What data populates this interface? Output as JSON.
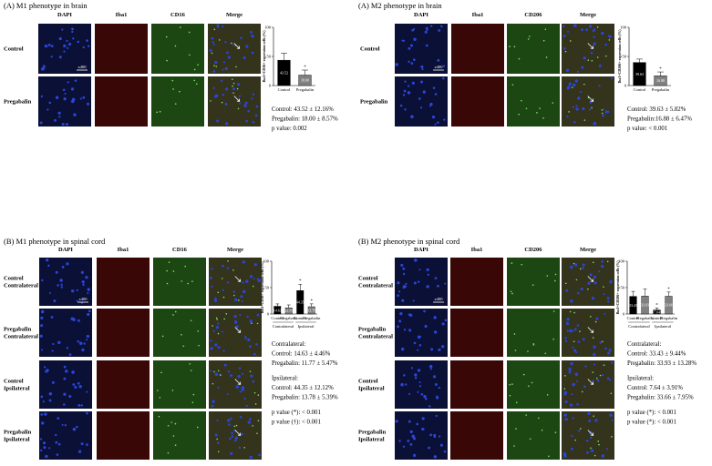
{
  "panels": [
    {
      "title": "(A) M1 phenotype in brain",
      "columns": [
        "DAPI",
        "Iba1",
        "CD16",
        "Merge"
      ],
      "rows": [
        [
          "Control"
        ],
        [
          "Pregabalin"
        ]
      ],
      "scale_label": "x400",
      "chart": {
        "type": "bar",
        "y_label": "Iba1+CD16+ expression cells (%)",
        "ylim": [
          0,
          100
        ],
        "yticks": [
          0,
          50,
          100
        ],
        "categories": [
          "Control",
          "Pregabalin"
        ],
        "values": [
          43.52,
          18.0
        ],
        "value_labels": [
          "43.52",
          "18.00"
        ],
        "errors": [
          12.16,
          8.57
        ],
        "markers": [
          null,
          "*"
        ],
        "bar_colors": [
          "#000000",
          "#808080"
        ]
      },
      "stats": [
        [
          "Control: 43.52 ± 12.16%",
          "Pregabalin: 18.00 ± 8.57%",
          "p value: 0.002"
        ]
      ]
    },
    {
      "title": "(A) M2 phenotype in brain",
      "columns": [
        "DAPI",
        "Iba1",
        "CD206",
        "Merge"
      ],
      "rows": [
        [
          "Control"
        ],
        [
          "Pregabalin"
        ]
      ],
      "scale_label": "x400",
      "chart": {
        "type": "bar",
        "y_label": "Iba1+CD206+ expression cells (%)",
        "ylim": [
          0,
          100
        ],
        "yticks": [
          0,
          50,
          100
        ],
        "categories": [
          "Control",
          "Pregabalin"
        ],
        "values": [
          39.63,
          16.88
        ],
        "value_labels": [
          "39.63",
          "16.88"
        ],
        "errors": [
          5.82,
          6.47
        ],
        "markers": [
          null,
          "*"
        ],
        "bar_colors": [
          "#000000",
          "#808080"
        ]
      },
      "stats": [
        [
          "Control: 39.63 ± 5.82%",
          "Pregabalin:16.88 ± 6.47%",
          "p value: < 0.001"
        ]
      ]
    },
    {
      "title": "(B) M1 phenotype in spinal cord",
      "columns": [
        "DAPI",
        "Iba1",
        "CD16",
        "Merge"
      ],
      "rows": [
        [
          "Control",
          "Contralateral"
        ],
        [
          "Pregabalin",
          "Contralateral"
        ],
        [
          "Control",
          "Ipsilateral"
        ],
        [
          "Pregabalin",
          "Ipsilateral"
        ]
      ],
      "scale_label": "x400",
      "chart": {
        "type": "bar",
        "y_label": "Iba1+CD16+ expression cells (%)",
        "ylim": [
          0,
          100
        ],
        "yticks": [
          0,
          50,
          100
        ],
        "categories": [
          "Control",
          "Pregabalin",
          "Control",
          "Pregabalin"
        ],
        "groups": [
          "Contralateral",
          "Ipsilateral"
        ],
        "values": [
          14.63,
          11.77,
          44.35,
          13.78
        ],
        "value_labels": [
          "14.63",
          "11.77",
          "44.35",
          "13.78"
        ],
        "errors": [
          4.46,
          5.47,
          12.12,
          5.39
        ],
        "markers": [
          null,
          null,
          "*",
          "*"
        ],
        "bar_colors": [
          "#000000",
          "#808080",
          "#000000",
          "#808080"
        ]
      },
      "stats": [
        [
          "Contralateral:",
          "Control: 14.63 ± 4.46%",
          "Pregabalin: 11.77 ± 5.47%"
        ],
        [
          "Ipsilateral:",
          "Control: 44.35 ± 12.12%",
          "Pregabalin: 13.78 ± 5.39%"
        ],
        [
          "p value (*): < 0.001",
          "p value (†): < 0.001"
        ]
      ]
    },
    {
      "title": "(B) M2 phenotype in spinal cord",
      "columns": [
        "DAPI",
        "Iba1",
        "CD206",
        "Merge"
      ],
      "rows": [
        [
          "Control",
          "Contralateral"
        ],
        [
          "Pregabalin",
          "Contralateral"
        ],
        [
          "Control",
          "Ipsilateral"
        ],
        [
          "Pregabalin",
          "Ipsilateral"
        ]
      ],
      "scale_label": "x400",
      "chart": {
        "type": "bar",
        "y_label": "Iba1+CD206+ expression cells (%)",
        "ylim": [
          0,
          100
        ],
        "yticks": [
          0,
          50,
          100
        ],
        "categories": [
          "Control",
          "Pregabalin",
          "Control",
          "Pregabalin"
        ],
        "groups": [
          "Contralateral",
          "Ipsilateral"
        ],
        "values": [
          33.43,
          33.93,
          7.64,
          33.66
        ],
        "value_labels": [
          "33.43",
          "33.93",
          "7.64",
          "33.66"
        ],
        "errors": [
          9.44,
          13.28,
          3.91,
          7.95
        ],
        "markers": [
          null,
          null,
          "*",
          "*"
        ],
        "bar_colors": [
          "#000000",
          "#808080",
          "#000000",
          "#808080"
        ]
      },
      "stats": [
        [
          "Contralateral:",
          "Control: 33.43 ± 9.44%",
          "Pregabalin: 33.93 ± 13.28%"
        ],
        [
          "Ipsilateral:",
          "Control: 7.64 ± 3.91%",
          "Pregabalin: 33.66 ± 7.95%"
        ],
        [
          "p value (*): < 0.001",
          "p value (*): < 0.001"
        ]
      ]
    }
  ]
}
